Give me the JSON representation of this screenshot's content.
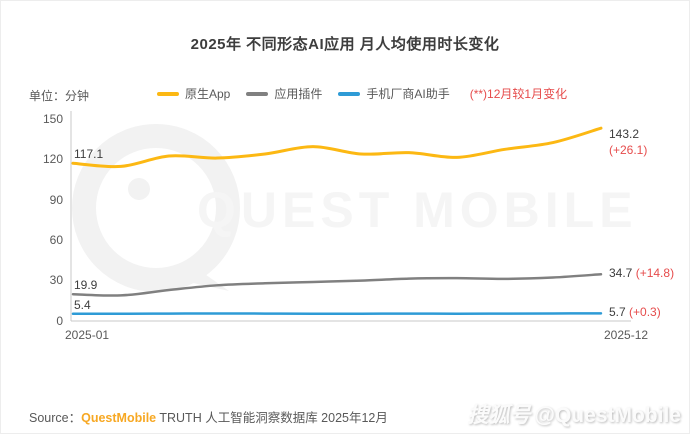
{
  "title": "2025年 不同形态AI应用 月人均使用时长变化",
  "unit_label": "单位：分钟",
  "legend": {
    "items": [
      {
        "label": "原生App",
        "color": "#fcb813"
      },
      {
        "label": "应用插件",
        "color": "#808080"
      },
      {
        "label": "手机厂商AI助手",
        "color": "#2e9bd6"
      }
    ],
    "note": "(**)12月较1月变化",
    "note_color": "#e64c4c"
  },
  "chart_data": {
    "type": "line",
    "x": [
      "2025-01",
      "2025-02",
      "2025-03",
      "2025-04",
      "2025-05",
      "2025-06",
      "2025-07",
      "2025-08",
      "2025-09",
      "2025-10",
      "2025-11",
      "2025-12"
    ],
    "series": [
      {
        "name": "原生App",
        "color": "#fcb813",
        "values": [
          117.1,
          114.8,
          122.5,
          121.0,
          124.0,
          129.5,
          124.0,
          125.0,
          121.5,
          127.5,
          132.5,
          143.2
        ],
        "start_label": "117.1",
        "end_label": "143.2",
        "delta_label": "(+26.1)"
      },
      {
        "name": "应用插件",
        "color": "#808080",
        "values": [
          19.9,
          19.0,
          23.0,
          26.5,
          28.0,
          29.0,
          30.0,
          31.5,
          31.8,
          31.3,
          32.3,
          34.7
        ],
        "start_label": "19.9",
        "end_label": "34.7",
        "delta_label": "(+14.8)"
      },
      {
        "name": "手机厂商AI助手",
        "color": "#2e9bd6",
        "values": [
          5.4,
          5.4,
          5.5,
          5.6,
          5.5,
          5.4,
          5.4,
          5.5,
          5.4,
          5.5,
          5.6,
          5.7
        ],
        "start_label": "5.4",
        "end_label": "5.7",
        "delta_label": "(+0.3)"
      }
    ],
    "yticks": [
      "150",
      "120",
      "90",
      "60",
      "30",
      "0"
    ],
    "ylim": [
      0,
      150
    ],
    "grid": false,
    "legend_position": "top",
    "xlabels_shown": [
      "2025-01",
      "2025-12"
    ],
    "delta_note": "(**)12月较1月变化"
  },
  "source": {
    "prefix": "Source：",
    "brand": "QuestMobile",
    "suffix": " TRUTH 人工智能洞察数据库 2025年12月"
  },
  "watermarks": {
    "center_text": "QUEST MOBILE",
    "corner_cn": "搜狐号",
    "corner_handle": "@QuestMobile"
  }
}
